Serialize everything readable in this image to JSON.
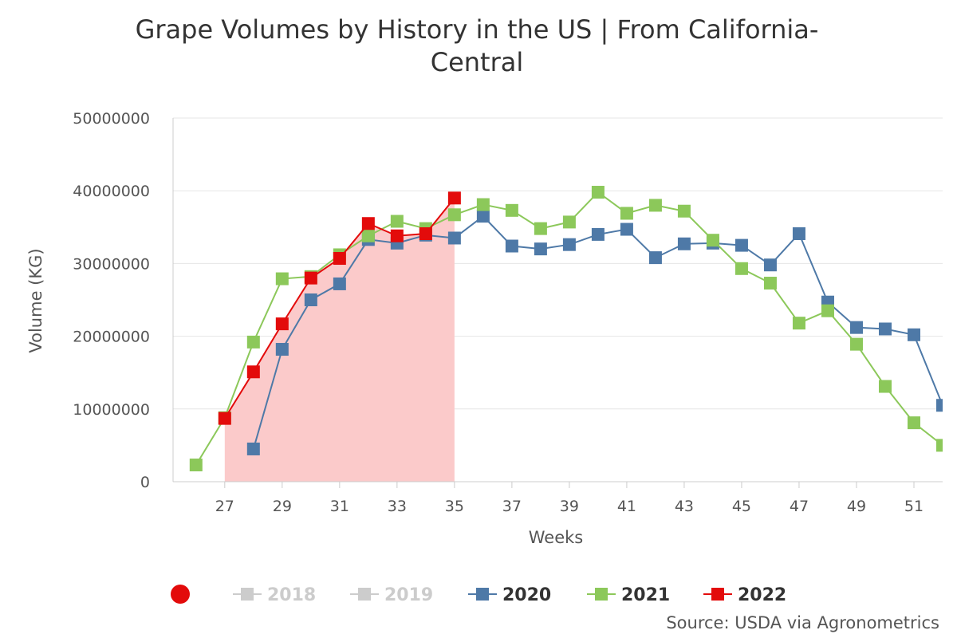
{
  "chart_data": {
    "type": "line",
    "title_lines": [
      "Grape Volumes by History in the US | From California-",
      "Central"
    ],
    "xlabel": "Weeks",
    "ylabel": "Volume (KG)",
    "ylim": [
      0,
      50000000
    ],
    "yticks": [
      "0",
      "10000000",
      "20000000",
      "30000000",
      "40000000",
      "50000000"
    ],
    "xlim": [
      25.2,
      52
    ],
    "xticks": [
      "27",
      "29",
      "31",
      "33",
      "35",
      "37",
      "39",
      "41",
      "43",
      "45",
      "47",
      "49",
      "51"
    ],
    "highlight_range": [
      27,
      35
    ],
    "highlight_color": "#fbcaca",
    "series": [
      {
        "name": "2018",
        "color": "#cccccc",
        "visible": false,
        "x": [],
        "y": []
      },
      {
        "name": "2019",
        "color": "#cccccc",
        "visible": false,
        "x": [],
        "y": []
      },
      {
        "name": "2020",
        "color": "#4e79a7",
        "visible": true,
        "x": [
          28,
          29,
          30,
          31,
          32,
          33,
          34,
          35,
          36,
          37,
          38,
          39,
          40,
          41,
          42,
          43,
          44,
          45,
          46,
          47,
          48,
          49,
          50,
          51,
          52
        ],
        "y": [
          4500000,
          18200000,
          25000000,
          27200000,
          33300000,
          32800000,
          33900000,
          33500000,
          36500000,
          32400000,
          32000000,
          32600000,
          34000000,
          34700000,
          30800000,
          32700000,
          32800000,
          32500000,
          29800000,
          34100000,
          24700000,
          21200000,
          21000000,
          20200000,
          10500000
        ]
      },
      {
        "name": "2021",
        "color": "#8cc85a",
        "visible": true,
        "x": [
          26,
          27,
          28,
          29,
          30,
          31,
          32,
          33,
          34,
          35,
          36,
          37,
          38,
          39,
          40,
          41,
          42,
          43,
          44,
          45,
          46,
          47,
          48,
          49,
          50,
          51,
          52
        ],
        "y": [
          2300000,
          8800000,
          19200000,
          27900000,
          28200000,
          31200000,
          33800000,
          35800000,
          34800000,
          36700000,
          38100000,
          37300000,
          34800000,
          35700000,
          39800000,
          36900000,
          38000000,
          37200000,
          33200000,
          29300000,
          27300000,
          21800000,
          23500000,
          18900000,
          13100000,
          8100000,
          5000000
        ]
      },
      {
        "name": "2022",
        "color": "#e30b0b",
        "visible": true,
        "x": [
          27,
          28,
          29,
          30,
          31,
          32,
          33,
          34,
          35
        ],
        "y": [
          8700000,
          15100000,
          21700000,
          28000000,
          30700000,
          35500000,
          33800000,
          34100000,
          39000000
        ]
      }
    ],
    "legend_marker_color": "#e30b0b",
    "source": "Source: USDA via Agronometrics"
  }
}
